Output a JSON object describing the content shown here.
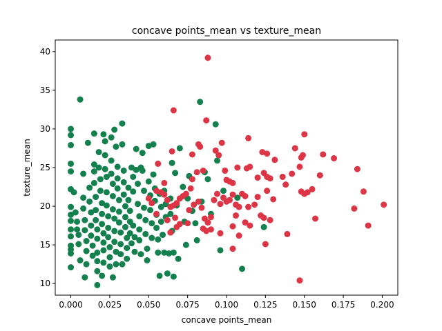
{
  "chart_data": {
    "type": "scatter",
    "title": "concave points_mean vs texture_mean",
    "xlabel": "concave points_mean",
    "ylabel": "texture_mean",
    "xlim": [
      -0.01,
      0.21
    ],
    "ylim": [
      8.5,
      41.5
    ],
    "xticks": [
      "0.000",
      "0.025",
      "0.050",
      "0.075",
      "0.100",
      "0.125",
      "0.150",
      "0.175",
      "0.200"
    ],
    "yticks": [
      "10",
      "15",
      "20",
      "25",
      "30",
      "35",
      "40"
    ],
    "grid": false,
    "colors": {
      "green": "#13804d",
      "red": "#dc3545"
    },
    "series": [
      {
        "color": "#13804d",
        "points": [
          [
            0.0,
            30.0
          ],
          [
            0.0,
            29.2
          ],
          [
            0.0,
            27.9
          ],
          [
            0.0,
            25.5
          ],
          [
            0.0,
            24.5
          ],
          [
            0.0,
            22.2
          ],
          [
            0.0,
            19.9
          ],
          [
            0.0,
            18.9
          ],
          [
            0.0,
            18.1
          ],
          [
            0.0,
            17.0
          ],
          [
            0.0,
            16.1
          ],
          [
            0.0,
            14.9
          ],
          [
            0.0,
            14.4
          ],
          [
            0.0,
            13.9
          ],
          [
            0.0,
            12.1
          ],
          [
            0.006,
            33.8
          ],
          [
            0.002,
            21.8
          ],
          [
            0.003,
            19.2
          ],
          [
            0.004,
            18.0
          ],
          [
            0.004,
            17.0
          ],
          [
            0.005,
            16.3
          ],
          [
            0.005,
            15.1
          ],
          [
            0.006,
            13.0
          ],
          [
            0.008,
            24.2
          ],
          [
            0.008,
            21.1
          ],
          [
            0.008,
            19.7
          ],
          [
            0.009,
            18.2
          ],
          [
            0.009,
            16.9
          ],
          [
            0.01,
            15.5
          ],
          [
            0.01,
            14.2
          ],
          [
            0.01,
            12.5
          ],
          [
            0.009,
            10.8
          ],
          [
            0.011,
            28.2
          ],
          [
            0.012,
            22.4
          ],
          [
            0.012,
            20.6
          ],
          [
            0.013,
            19.2
          ],
          [
            0.013,
            17.5
          ],
          [
            0.013,
            16.2
          ],
          [
            0.014,
            14.9
          ],
          [
            0.014,
            13.6
          ],
          [
            0.015,
            25.4
          ],
          [
            0.015,
            24.5
          ],
          [
            0.015,
            23.0
          ],
          [
            0.016,
            21.2
          ],
          [
            0.016,
            19.5
          ],
          [
            0.016,
            18.2
          ],
          [
            0.017,
            17.0
          ],
          [
            0.017,
            15.8
          ],
          [
            0.017,
            14.0
          ],
          [
            0.017,
            12.9
          ],
          [
            0.017,
            11.6
          ],
          [
            0.017,
            9.8
          ],
          [
            0.015,
            29.4
          ],
          [
            0.018,
            27.0
          ],
          [
            0.018,
            25.0
          ],
          [
            0.019,
            23.5
          ],
          [
            0.019,
            22.0
          ],
          [
            0.02,
            20.4
          ],
          [
            0.02,
            19.0
          ],
          [
            0.02,
            17.7
          ],
          [
            0.021,
            16.5
          ],
          [
            0.021,
            15.3
          ],
          [
            0.021,
            14.3
          ],
          [
            0.021,
            12.7
          ],
          [
            0.02,
            11.0
          ],
          [
            0.021,
            29.3
          ],
          [
            0.022,
            28.4
          ],
          [
            0.022,
            26.6
          ],
          [
            0.022,
            24.8
          ],
          [
            0.023,
            23.8
          ],
          [
            0.023,
            21.8
          ],
          [
            0.023,
            20.1
          ],
          [
            0.024,
            18.7
          ],
          [
            0.024,
            17.2
          ],
          [
            0.024,
            16.0
          ],
          [
            0.025,
            14.7
          ],
          [
            0.025,
            13.4
          ],
          [
            0.025,
            12.2
          ],
          [
            0.026,
            28.9
          ],
          [
            0.026,
            25.9
          ],
          [
            0.026,
            24.2
          ],
          [
            0.027,
            22.9
          ],
          [
            0.027,
            21.3
          ],
          [
            0.027,
            19.6
          ],
          [
            0.028,
            18.4
          ],
          [
            0.028,
            16.8
          ],
          [
            0.028,
            15.4
          ],
          [
            0.029,
            14.1
          ],
          [
            0.029,
            12.5
          ],
          [
            0.027,
            10.8
          ],
          [
            0.028,
            29.9
          ],
          [
            0.029,
            27.7
          ],
          [
            0.03,
            25.1
          ],
          [
            0.03,
            23.6
          ],
          [
            0.03,
            22.3
          ],
          [
            0.031,
            20.8
          ],
          [
            0.031,
            19.3
          ],
          [
            0.031,
            17.9
          ],
          [
            0.032,
            16.6
          ],
          [
            0.032,
            15.1
          ],
          [
            0.032,
            13.8
          ],
          [
            0.033,
            12.5
          ],
          [
            0.033,
            30.7
          ],
          [
            0.033,
            28.0
          ],
          [
            0.034,
            24.6
          ],
          [
            0.034,
            23.1
          ],
          [
            0.034,
            21.5
          ],
          [
            0.035,
            20.0
          ],
          [
            0.035,
            18.6
          ],
          [
            0.035,
            17.3
          ],
          [
            0.036,
            15.9
          ],
          [
            0.036,
            14.6
          ],
          [
            0.036,
            13.2
          ],
          [
            0.037,
            22.4
          ],
          [
            0.037,
            20.8
          ],
          [
            0.038,
            19.4
          ],
          [
            0.038,
            18.0
          ],
          [
            0.038,
            16.5
          ],
          [
            0.039,
            15.2
          ],
          [
            0.039,
            25.0
          ],
          [
            0.04,
            23.8
          ],
          [
            0.04,
            21.9
          ],
          [
            0.04,
            17.5
          ],
          [
            0.041,
            16.0
          ],
          [
            0.041,
            14.1
          ],
          [
            0.042,
            27.4
          ],
          [
            0.042,
            24.7
          ],
          [
            0.043,
            22.9
          ],
          [
            0.043,
            20.3
          ],
          [
            0.044,
            18.7
          ],
          [
            0.044,
            17.0
          ],
          [
            0.044,
            15.6
          ],
          [
            0.045,
            13.8
          ],
          [
            0.045,
            25.0
          ],
          [
            0.046,
            26.9
          ],
          [
            0.046,
            24.6
          ],
          [
            0.047,
            22.0
          ],
          [
            0.047,
            19.8
          ],
          [
            0.048,
            18.2
          ],
          [
            0.048,
            16.4
          ],
          [
            0.049,
            14.5
          ],
          [
            0.049,
            13.0
          ],
          [
            0.05,
            27.8
          ],
          [
            0.05,
            23.2
          ],
          [
            0.051,
            21.4
          ],
          [
            0.051,
            19.5
          ],
          [
            0.052,
            17.8
          ],
          [
            0.052,
            15.9
          ],
          [
            0.053,
            28.0
          ],
          [
            0.053,
            24.1
          ],
          [
            0.054,
            22.3
          ],
          [
            0.054,
            20.7
          ],
          [
            0.055,
            18.9
          ],
          [
            0.055,
            17.2
          ],
          [
            0.056,
            15.7
          ],
          [
            0.056,
            14.0
          ],
          [
            0.057,
            11.0
          ],
          [
            0.057,
            21.6
          ],
          [
            0.058,
            19.9
          ],
          [
            0.058,
            18.0
          ],
          [
            0.059,
            16.3
          ],
          [
            0.06,
            14.0
          ],
          [
            0.06,
            22.0
          ],
          [
            0.061,
            20.3
          ],
          [
            0.061,
            18.6
          ],
          [
            0.062,
            11.3
          ],
          [
            0.063,
            13.9
          ],
          [
            0.064,
            21.0
          ],
          [
            0.064,
            19.0
          ],
          [
            0.065,
            25.6
          ],
          [
            0.065,
            16.8
          ],
          [
            0.066,
            10.9
          ],
          [
            0.066,
            14.0
          ],
          [
            0.067,
            24.3
          ],
          [
            0.068,
            20.1
          ],
          [
            0.069,
            13.2
          ],
          [
            0.07,
            27.5
          ],
          [
            0.072,
            22.5
          ],
          [
            0.073,
            18.0
          ],
          [
            0.074,
            15.0
          ],
          [
            0.075,
            21.0
          ],
          [
            0.076,
            23.9
          ],
          [
            0.078,
            19.4
          ],
          [
            0.08,
            17.8
          ],
          [
            0.081,
            15.6
          ],
          [
            0.083,
            33.5
          ],
          [
            0.084,
            20.6
          ],
          [
            0.086,
            24.4
          ],
          [
            0.088,
            23.5
          ],
          [
            0.09,
            19.0
          ],
          [
            0.093,
            30.6
          ],
          [
            0.094,
            25.9
          ],
          [
            0.096,
            14.3
          ],
          [
            0.11,
            11.9
          ],
          [
            0.124,
            17.3
          ],
          [
            0.107,
            21.1
          ],
          [
            0.098,
            22.0
          ]
        ]
      },
      {
        "color": "#dc3545",
        "points": [
          [
            0.088,
            39.2
          ],
          [
            0.066,
            32.4
          ],
          [
            0.087,
            31.1
          ],
          [
            0.082,
            28.0
          ],
          [
            0.083,
            27.7
          ],
          [
            0.065,
            27.1
          ],
          [
            0.078,
            26.7
          ],
          [
            0.095,
            26.6
          ],
          [
            0.093,
            27.2
          ],
          [
            0.097,
            28.2
          ],
          [
            0.114,
            28.8
          ],
          [
            0.15,
            29.3
          ],
          [
            0.144,
            27.5
          ],
          [
            0.148,
            26.3
          ],
          [
            0.149,
            26.6
          ],
          [
            0.162,
            26.7
          ],
          [
            0.169,
            26.2
          ],
          [
            0.184,
            24.8
          ],
          [
            0.123,
            27.0
          ],
          [
            0.126,
            26.8
          ],
          [
            0.131,
            26.0
          ],
          [
            0.115,
            25.1
          ],
          [
            0.113,
            24.9
          ],
          [
            0.107,
            25.0
          ],
          [
            0.099,
            24.6
          ],
          [
            0.1,
            23.4
          ],
          [
            0.102,
            23.2
          ],
          [
            0.104,
            23.0
          ],
          [
            0.085,
            24.6
          ],
          [
            0.081,
            24.4
          ],
          [
            0.078,
            23.5
          ],
          [
            0.077,
            22.3
          ],
          [
            0.074,
            21.6
          ],
          [
            0.072,
            21.3
          ],
          [
            0.07,
            21.0
          ],
          [
            0.068,
            20.4
          ],
          [
            0.066,
            20.1
          ],
          [
            0.064,
            19.9
          ],
          [
            0.062,
            20.8
          ],
          [
            0.058,
            21.8
          ],
          [
            0.06,
            21.5
          ],
          [
            0.06,
            23.0
          ],
          [
            0.056,
            25.5
          ],
          [
            0.055,
            22.0
          ],
          [
            0.052,
            20.4
          ],
          [
            0.05,
            21.0
          ],
          [
            0.055,
            19.0
          ],
          [
            0.062,
            18.2
          ],
          [
            0.07,
            17.7
          ],
          [
            0.067,
            18.5
          ],
          [
            0.076,
            19.5
          ],
          [
            0.079,
            20.2
          ],
          [
            0.082,
            20.6
          ],
          [
            0.084,
            19.8
          ],
          [
            0.086,
            18.4
          ],
          [
            0.088,
            17.9
          ],
          [
            0.09,
            17.0
          ],
          [
            0.085,
            17.1
          ],
          [
            0.087,
            16.8
          ],
          [
            0.09,
            18.6
          ],
          [
            0.092,
            20.8
          ],
          [
            0.094,
            21.6
          ],
          [
            0.096,
            20.3
          ],
          [
            0.098,
            21.1
          ],
          [
            0.1,
            20.6
          ],
          [
            0.102,
            20.8
          ],
          [
            0.104,
            21.5
          ],
          [
            0.106,
            20.2
          ],
          [
            0.108,
            19.9
          ],
          [
            0.11,
            21.6
          ],
          [
            0.112,
            21.3
          ],
          [
            0.114,
            19.9
          ],
          [
            0.106,
            18.8
          ],
          [
            0.104,
            17.4
          ],
          [
            0.104,
            14.5
          ],
          [
            0.108,
            16.2
          ],
          [
            0.115,
            17.5
          ],
          [
            0.118,
            20.2
          ],
          [
            0.122,
            18.8
          ],
          [
            0.124,
            18.5
          ],
          [
            0.12,
            21.2
          ],
          [
            0.12,
            23.7
          ],
          [
            0.124,
            24.3
          ],
          [
            0.126,
            23.8
          ],
          [
            0.128,
            23.6
          ],
          [
            0.13,
            20.9
          ],
          [
            0.126,
            22.0
          ],
          [
            0.128,
            18.2
          ],
          [
            0.125,
            15.1
          ],
          [
            0.139,
            16.4
          ],
          [
            0.136,
            23.8
          ],
          [
            0.138,
            22.8
          ],
          [
            0.142,
            24.2
          ],
          [
            0.147,
            25.1
          ],
          [
            0.148,
            21.9
          ],
          [
            0.15,
            21.6
          ],
          [
            0.152,
            21.8
          ],
          [
            0.155,
            22.2
          ],
          [
            0.157,
            18.4
          ],
          [
            0.16,
            24.0
          ],
          [
            0.182,
            19.7
          ],
          [
            0.188,
            21.9
          ],
          [
            0.191,
            17.5
          ],
          [
            0.201,
            20.2
          ],
          [
            0.147,
            10.4
          ],
          [
            0.075,
            17.8
          ],
          [
            0.068,
            17.3
          ],
          [
            0.064,
            16.6
          ],
          [
            0.096,
            16.5
          ],
          [
            0.112,
            17.9
          ]
        ]
      }
    ]
  }
}
